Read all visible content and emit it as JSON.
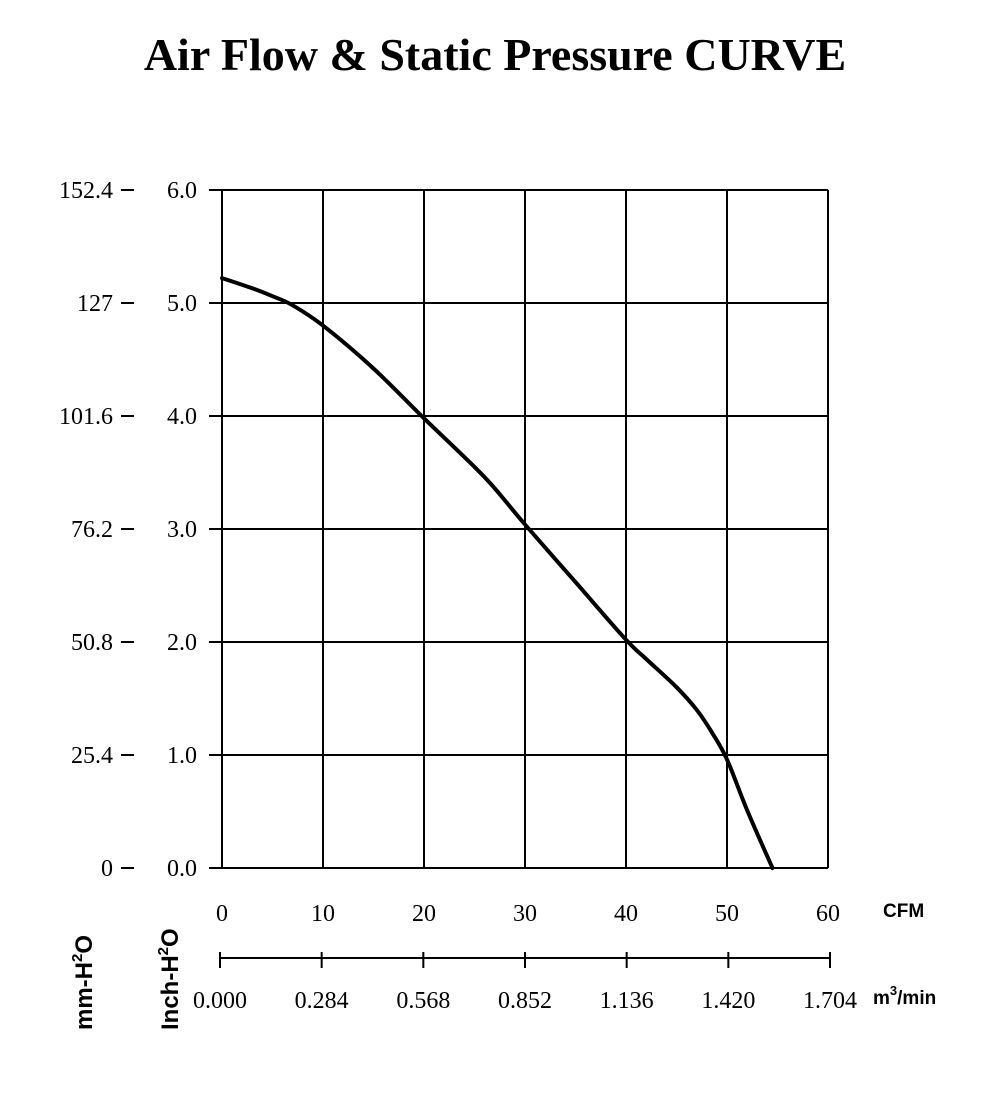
{
  "chart_data": {
    "type": "line",
    "title": "Air Flow & Static Pressure CURVE",
    "x_unit_primary": "CFM",
    "x_unit_secondary": "m3/min",
    "x_unit_secondary_display": {
      "base": "m",
      "sup": "3",
      "rest": "/min"
    },
    "y_label_inch": {
      "base": "Inch-H",
      "sup": "2",
      "rest": "O"
    },
    "y_label_mm": {
      "base": "mm-H",
      "sup": "2",
      "rest": "O"
    },
    "xlim": [
      0,
      60
    ],
    "ylim": [
      0,
      6.0
    ],
    "x_ticks_cfm": [
      "0",
      "10",
      "20",
      "30",
      "40",
      "50",
      "60"
    ],
    "x_ticks_m3min": [
      "0.000",
      "0.284",
      "0.568",
      "0.852",
      "1.136",
      "1.420",
      "1.704"
    ],
    "y_ticks_inch": [
      "0.0",
      "1.0",
      "2.0",
      "3.0",
      "4.0",
      "5.0",
      "6.0"
    ],
    "y_ticks_mm": [
      "0",
      "25.4",
      "50.8",
      "76.2",
      "101.6",
      "127",
      "152.4"
    ],
    "grid": true,
    "series": [
      {
        "x": [
          0,
          3,
          5,
          7,
          10,
          15,
          20,
          25,
          27,
          30,
          35,
          40,
          42,
          45,
          47,
          48.5,
          50,
          52,
          54.5
        ],
        "y": [
          5.22,
          5.13,
          5.06,
          4.98,
          4.8,
          4.42,
          3.98,
          3.55,
          3.36,
          3.04,
          2.53,
          2.02,
          1.85,
          1.6,
          1.4,
          1.2,
          0.96,
          0.51,
          0.0
        ]
      }
    ]
  }
}
